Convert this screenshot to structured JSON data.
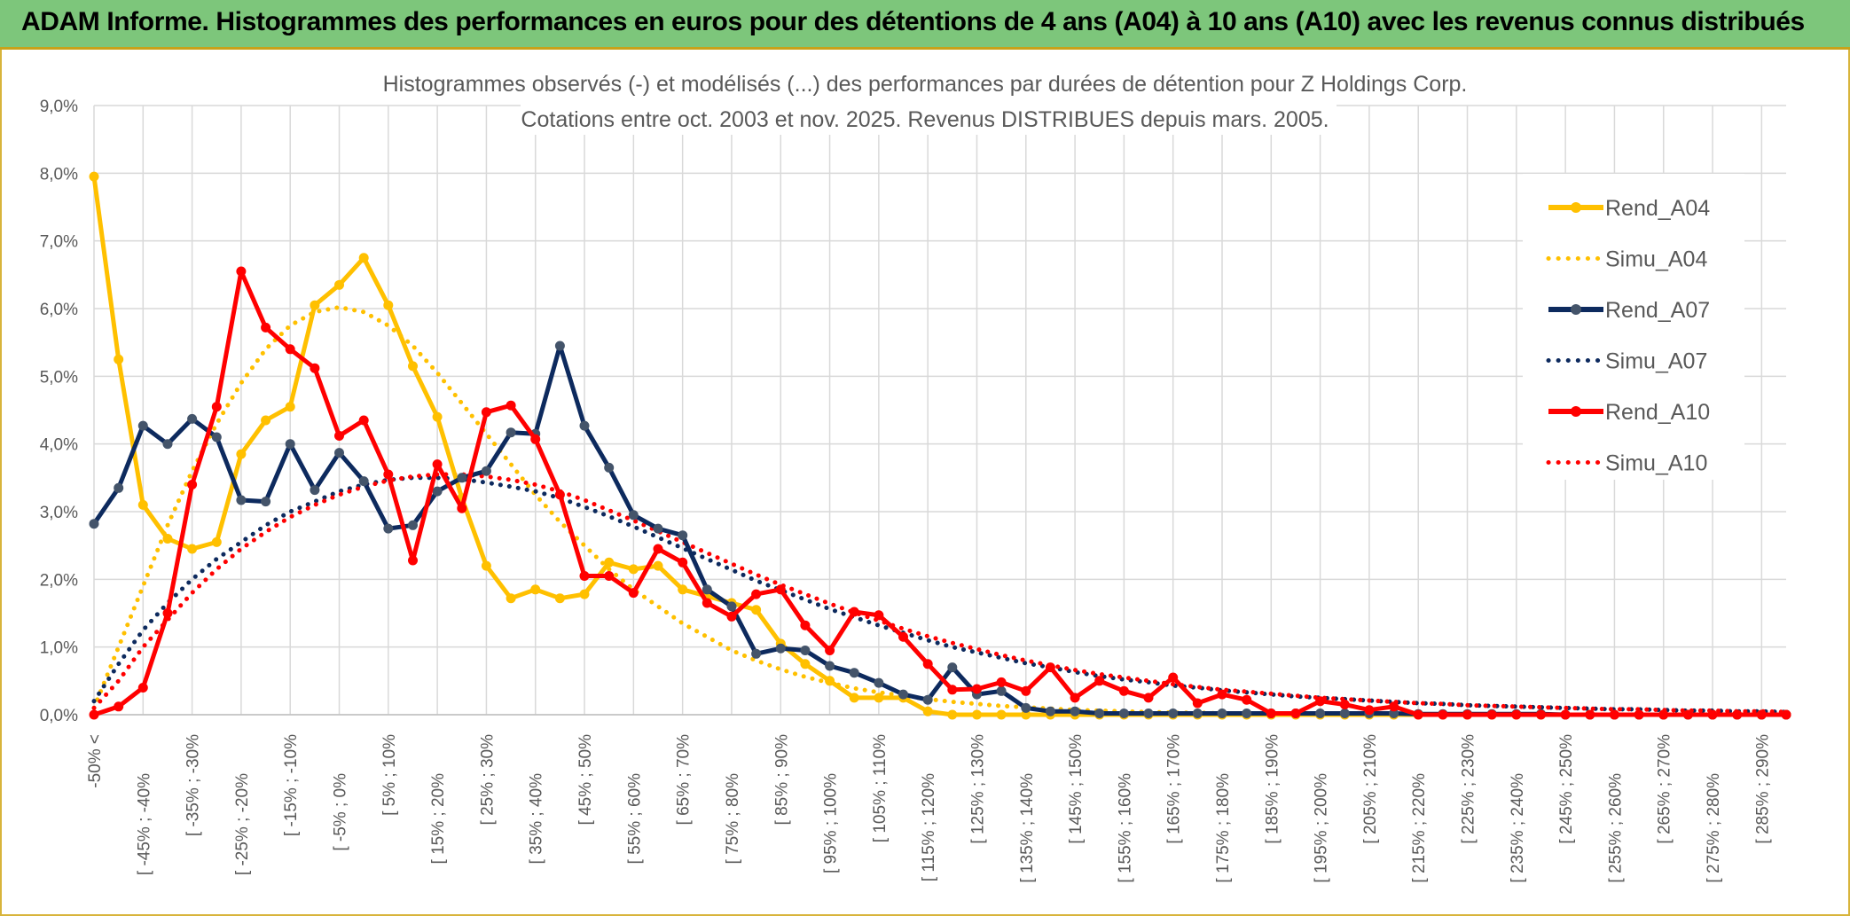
{
  "header": {
    "title": "ADAM Informe. Histogrammes des performances en euros pour des détentions de 4 ans (A04) à 10 ans (A10) avec les revenus connus distribués"
  },
  "chart_data": {
    "type": "line",
    "title_line1": "Histogrammes observés (-) et modélisés (...) des performances par durées de détention pour Z Holdings Corp.",
    "title_line2": "Cotations entre oct. 2003 et nov. 2025. Revenus DISTRIBUES depuis mars. 2005.",
    "ylim": [
      0,
      9
    ],
    "y_ticks": [
      "0,0%",
      "1,0%",
      "2,0%",
      "3,0%",
      "4,0%",
      "5,0%",
      "6,0%",
      "7,0%",
      "8,0%",
      "9,0%"
    ],
    "x_labels": [
      "-50% <",
      "[ -45% ; -40%",
      "[ -35% ; -30%",
      "[ -25% ; -20%",
      "[ -15% ; -10%",
      "[ -5% ; 0%",
      "[ 5% ; 10%",
      "[ 15% ; 20%",
      "[ 25% ; 30%",
      "[ 35% ; 40%",
      "[ 45% ; 50%",
      "[ 55% ; 60%",
      "[ 65% ; 70%",
      "[ 75% ; 80%",
      "[ 85% ; 90%",
      "[ 95% ; 100%",
      "[ 105% ; 110%",
      "[ 115% ; 120%",
      "[ 125% ; 130%",
      "[ 135% ; 140%",
      "[ 145% ; 150%",
      "[ 155% ; 160%",
      "[ 165% ; 170%",
      "[ 175% ; 180%",
      "[ 185% ; 190%",
      "[ 195% ; 200%",
      "[ 205% ; 210%",
      "[ 215% ; 220%",
      "[ 225% ; 230%",
      "[ 235% ; 240%",
      "[ 245% ; 250%",
      "[ 255% ; 260%",
      "[ 265% ; 270%",
      "[ 275% ; 280%",
      "[ 285% ; 290%"
    ],
    "x_count": 70,
    "series": [
      {
        "name": "Rend_A04",
        "style": "solid",
        "color": "#ffc000",
        "values": [
          7.95,
          5.25,
          3.1,
          2.6,
          2.45,
          2.55,
          3.85,
          4.35,
          4.55,
          6.05,
          6.35,
          6.75,
          6.05,
          5.15,
          4.4,
          3.2,
          2.2,
          1.72,
          1.85,
          1.72,
          1.78,
          2.25,
          2.15,
          2.2,
          1.85,
          1.75,
          1.65,
          1.55,
          1.05,
          0.75,
          0.5,
          0.25,
          0.25,
          0.25,
          0.05,
          0,
          0,
          0,
          0,
          0,
          0,
          0,
          0,
          0,
          0,
          0,
          0,
          0,
          0,
          0,
          0,
          0,
          0,
          0,
          0,
          0,
          0,
          0,
          0,
          0,
          0,
          0,
          0,
          0,
          0,
          0,
          0,
          0,
          0,
          0
        ]
      },
      {
        "name": "Simu_A04",
        "style": "dotted",
        "color": "#ffc000",
        "values": [
          0.1,
          1.0,
          1.9,
          2.8,
          3.6,
          4.3,
          4.9,
          5.4,
          5.75,
          5.95,
          6.02,
          5.95,
          5.75,
          5.45,
          5.05,
          4.6,
          4.15,
          3.7,
          3.25,
          2.85,
          2.5,
          2.15,
          1.85,
          1.6,
          1.35,
          1.15,
          0.95,
          0.8,
          0.67,
          0.56,
          0.47,
          0.39,
          0.33,
          0.28,
          0.23,
          0.19,
          0.16,
          0.13,
          0.11,
          0.09,
          0.07,
          0.06,
          0.05,
          0.04,
          0.03,
          0.03,
          0.02,
          0.02,
          0.02,
          0.01,
          0.01,
          0.01,
          0.01,
          0.01,
          0,
          0,
          0,
          0,
          0,
          0,
          0,
          0,
          0,
          0,
          0,
          0,
          0,
          0,
          0,
          0
        ]
      },
      {
        "name": "Rend_A07",
        "style": "solid",
        "color": "#0d2a5e",
        "values": [
          2.82,
          3.35,
          4.27,
          4.0,
          4.37,
          4.1,
          3.17,
          3.15,
          4.0,
          3.32,
          3.87,
          3.45,
          2.75,
          2.8,
          3.3,
          3.5,
          3.6,
          4.17,
          4.15,
          5.45,
          4.27,
          3.65,
          2.95,
          2.75,
          2.65,
          1.85,
          1.6,
          0.9,
          0.98,
          0.95,
          0.72,
          0.62,
          0.47,
          0.3,
          0.22,
          0.7,
          0.3,
          0.35,
          0.1,
          0.05,
          0.05,
          0.02,
          0.02,
          0.02,
          0.02,
          0.02,
          0.02,
          0.02,
          0.02,
          0.02,
          0.02,
          0.02,
          0.02,
          0.02,
          0.01,
          0.01,
          0.01,
          0.01,
          0.01,
          0.01,
          0,
          0,
          0,
          0,
          0,
          0,
          0,
          0,
          0,
          0
        ]
      },
      {
        "name": "Simu_A07",
        "style": "dotted",
        "color": "#0d2a5e",
        "values": [
          0.2,
          0.75,
          1.25,
          1.65,
          2.0,
          2.3,
          2.55,
          2.8,
          3.0,
          3.15,
          3.3,
          3.4,
          3.47,
          3.5,
          3.5,
          3.48,
          3.43,
          3.37,
          3.3,
          3.2,
          3.07,
          2.93,
          2.78,
          2.62,
          2.46,
          2.3,
          2.14,
          1.98,
          1.84,
          1.7,
          1.56,
          1.44,
          1.32,
          1.21,
          1.1,
          1.0,
          0.92,
          0.84,
          0.76,
          0.7,
          0.63,
          0.57,
          0.52,
          0.48,
          0.43,
          0.4,
          0.36,
          0.33,
          0.3,
          0.27,
          0.25,
          0.23,
          0.21,
          0.19,
          0.17,
          0.16,
          0.14,
          0.13,
          0.12,
          0.11,
          0.1,
          0.09,
          0.08,
          0.08,
          0.07,
          0.06,
          0.06,
          0.05,
          0.05,
          0.04
        ]
      },
      {
        "name": "Rend_A10",
        "style": "solid",
        "color": "#ff0000",
        "values": [
          0,
          0.12,
          0.4,
          1.5,
          3.4,
          4.55,
          6.55,
          5.72,
          5.4,
          5.12,
          4.12,
          4.35,
          3.55,
          2.28,
          3.7,
          3.05,
          4.47,
          4.57,
          4.07,
          3.25,
          2.05,
          2.05,
          1.8,
          2.45,
          2.25,
          1.65,
          1.45,
          1.78,
          1.85,
          1.32,
          0.95,
          1.52,
          1.47,
          1.15,
          0.75,
          0.37,
          0.38,
          0.48,
          0.35,
          0.7,
          0.25,
          0.5,
          0.35,
          0.25,
          0.55,
          0.17,
          0.3,
          0.22,
          0.02,
          0.02,
          0.2,
          0.15,
          0.07,
          0.12,
          0,
          0,
          0,
          0,
          0,
          0,
          0,
          0,
          0,
          0,
          0,
          0,
          0,
          0,
          0,
          0
        ]
      },
      {
        "name": "Simu_A10",
        "style": "dotted",
        "color": "#ff0000",
        "values": [
          0.1,
          0.5,
          1.0,
          1.4,
          1.8,
          2.15,
          2.45,
          2.7,
          2.92,
          3.1,
          3.25,
          3.37,
          3.46,
          3.52,
          3.55,
          3.55,
          3.52,
          3.47,
          3.4,
          3.3,
          3.17,
          3.02,
          2.87,
          2.71,
          2.55,
          2.39,
          2.23,
          2.07,
          1.92,
          1.78,
          1.64,
          1.51,
          1.39,
          1.27,
          1.16,
          1.06,
          0.97,
          0.88,
          0.8,
          0.73,
          0.66,
          0.6,
          0.55,
          0.5,
          0.45,
          0.41,
          0.37,
          0.34,
          0.31,
          0.28,
          0.25,
          0.23,
          0.21,
          0.19,
          0.17,
          0.16,
          0.14,
          0.13,
          0.12,
          0.11,
          0.1,
          0.09,
          0.08,
          0.08,
          0.07,
          0.06,
          0.06,
          0.05,
          0.05,
          0.04
        ]
      }
    ],
    "legend": [
      "Rend_A04",
      "Simu_A04",
      "Rend_A07",
      "Simu_A07",
      "Rend_A10",
      "Simu_A10"
    ],
    "legend_position": "top-right",
    "grid": true
  }
}
